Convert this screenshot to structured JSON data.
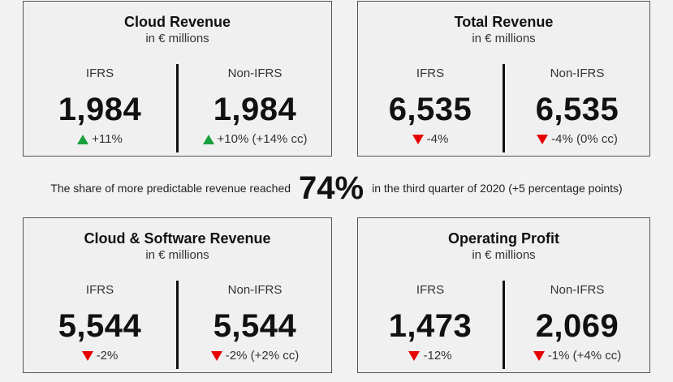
{
  "cards": [
    {
      "title": "Cloud Revenue",
      "subtitle": "in € millions",
      "columns": [
        {
          "label": "IFRS",
          "value": "1,984",
          "change": "+11%",
          "trend": "up"
        },
        {
          "label": "Non-IFRS",
          "value": "1,984",
          "change": "+10% (+14% cc)",
          "trend": "up"
        }
      ]
    },
    {
      "title": "Total Revenue",
      "subtitle": "in € millions",
      "columns": [
        {
          "label": "IFRS",
          "value": "6,535",
          "change": "-4%",
          "trend": "down"
        },
        {
          "label": "Non-IFRS",
          "value": "6,535",
          "change": "-4% (0% cc)",
          "trend": "down"
        }
      ]
    },
    {
      "title": "Cloud & Software Revenue",
      "subtitle": "in € millions",
      "columns": [
        {
          "label": "IFRS",
          "value": "5,544",
          "change": "-2%",
          "trend": "down"
        },
        {
          "label": "Non-IFRS",
          "value": "5,544",
          "change": "-2% (+2% cc)",
          "trend": "down"
        }
      ]
    },
    {
      "title": "Operating Profit",
      "subtitle": "in € millions",
      "columns": [
        {
          "label": "IFRS",
          "value": "1,473",
          "change": "-12%",
          "trend": "down"
        },
        {
          "label": "Non-IFRS",
          "value": "2,069",
          "change": "-1% (+4% cc)",
          "trend": "down"
        }
      ]
    }
  ],
  "highlight": {
    "before": "The share of more predictable revenue reached",
    "value": "74%",
    "after": "in the third quarter of 2020 (+5 percentage points)"
  }
}
